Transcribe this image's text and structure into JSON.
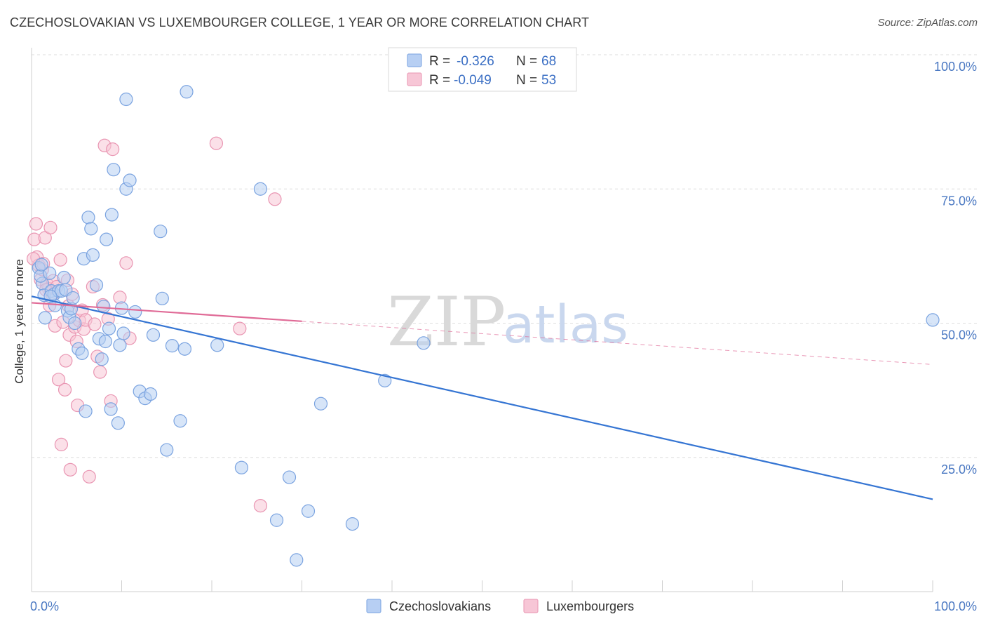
{
  "title": "CZECHOSLOVAKIAN VS LUXEMBOURGER COLLEGE, 1 YEAR OR MORE CORRELATION CHART",
  "source": "Source: ZipAtlas.com",
  "watermark": {
    "zip": "ZIP",
    "atlas": "atlas"
  },
  "colors": {
    "blue_fill": "#b7cff3",
    "blue_stroke": "#7aa3e0",
    "blue_line": "#3575d3",
    "pink_fill": "#f7c6d6",
    "pink_stroke": "#e995b2",
    "pink_line": "#e06b97",
    "grid": "#dddddd",
    "tick_text": "#4a78c2"
  },
  "legend": {
    "rows": [
      {
        "r_label": "R =",
        "r_value": "-0.326",
        "n_label": "N =",
        "n_value": "68"
      },
      {
        "r_label": "R =",
        "r_value": "-0.049",
        "n_label": "N =",
        "n_value": "53"
      }
    ]
  },
  "chart_data": {
    "type": "scatter",
    "title": "CZECHOSLOVAKIAN VS LUXEMBOURGER COLLEGE, 1 YEAR OR MORE CORRELATION CHART",
    "xlabel": "",
    "ylabel": "College, 1 year or more",
    "xlim": [
      0,
      100
    ],
    "ylim": [
      0,
      100
    ],
    "x_tick_labels": [
      "0.0%",
      "100.0%"
    ],
    "y_tick_values": [
      100,
      75,
      50,
      25
    ],
    "y_tick_labels": [
      "100.0%",
      "75.0%",
      "50.0%",
      "25.0%"
    ],
    "series": [
      {
        "name": "Czechoslovakians",
        "color_key": "blue",
        "R": -0.326,
        "N": 68,
        "trend": {
          "x0": 0,
          "y0": 55.0,
          "x1": 100,
          "y1": 17.2,
          "solid_to": 100
        },
        "points": [
          [
            0.8,
            60.3
          ],
          [
            1.2,
            57.4
          ],
          [
            1.0,
            58.8
          ],
          [
            1.4,
            55.2
          ],
          [
            1.5,
            51.0
          ],
          [
            2.0,
            59.3
          ],
          [
            2.2,
            56.0
          ],
          [
            2.5,
            55.4
          ],
          [
            2.6,
            53.3
          ],
          [
            3.0,
            56.0
          ],
          [
            3.3,
            56.0
          ],
          [
            3.6,
            58.5
          ],
          [
            3.8,
            56.2
          ],
          [
            4.0,
            52.3
          ],
          [
            4.2,
            51.1
          ],
          [
            4.4,
            52.7
          ],
          [
            4.6,
            54.7
          ],
          [
            4.8,
            50.0
          ],
          [
            5.2,
            45.2
          ],
          [
            5.6,
            44.4
          ],
          [
            5.8,
            62.0
          ],
          [
            6.0,
            33.6
          ],
          [
            6.3,
            69.7
          ],
          [
            6.6,
            67.6
          ],
          [
            6.8,
            62.7
          ],
          [
            7.2,
            57.1
          ],
          [
            7.5,
            47.1
          ],
          [
            7.8,
            43.3
          ],
          [
            8.0,
            53.1
          ],
          [
            8.3,
            65.6
          ],
          [
            8.6,
            49.0
          ],
          [
            8.8,
            34.0
          ],
          [
            8.9,
            70.2
          ],
          [
            9.1,
            78.6
          ],
          [
            9.6,
            31.4
          ],
          [
            9.8,
            45.9
          ],
          [
            10.0,
            52.8
          ],
          [
            10.2,
            48.1
          ],
          [
            10.5,
            91.7
          ],
          [
            10.5,
            75.0
          ],
          [
            10.9,
            76.6
          ],
          [
            11.5,
            52.1
          ],
          [
            12.0,
            37.3
          ],
          [
            12.6,
            36.0
          ],
          [
            13.2,
            36.8
          ],
          [
            13.5,
            47.8
          ],
          [
            14.3,
            67.1
          ],
          [
            14.5,
            54.6
          ],
          [
            15.0,
            26.4
          ],
          [
            15.6,
            45.8
          ],
          [
            16.5,
            31.8
          ],
          [
            17.0,
            45.2
          ],
          [
            17.2,
            93.1
          ],
          [
            20.6,
            45.9
          ],
          [
            23.3,
            23.1
          ],
          [
            25.4,
            75.0
          ],
          [
            27.2,
            13.3
          ],
          [
            28.6,
            21.3
          ],
          [
            29.4,
            5.9
          ],
          [
            30.7,
            15.0
          ],
          [
            32.1,
            35.0
          ],
          [
            35.6,
            12.6
          ],
          [
            39.2,
            39.3
          ],
          [
            43.5,
            46.3
          ],
          [
            100.0,
            50.6
          ],
          [
            1.1,
            60.9
          ],
          [
            2.1,
            55.0
          ],
          [
            8.2,
            46.6
          ]
        ]
      },
      {
        "name": "Luxembourgers",
        "color_key": "pink",
        "R": -0.049,
        "N": 53,
        "trend": {
          "x0": 0,
          "y0": 53.8,
          "x1": 100,
          "y1": 42.3,
          "solid_to": 30
        },
        "points": [
          [
            0.3,
            65.6
          ],
          [
            0.5,
            68.5
          ],
          [
            0.6,
            62.3
          ],
          [
            0.8,
            60.8
          ],
          [
            1.0,
            58.1
          ],
          [
            1.2,
            60.0
          ],
          [
            1.3,
            61.1
          ],
          [
            1.5,
            65.9
          ],
          [
            1.7,
            57.3
          ],
          [
            1.9,
            56.4
          ],
          [
            2.0,
            53.3
          ],
          [
            2.1,
            67.8
          ],
          [
            2.3,
            55.3
          ],
          [
            2.4,
            57.9
          ],
          [
            2.6,
            49.5
          ],
          [
            2.8,
            56.8
          ],
          [
            3.0,
            39.5
          ],
          [
            3.2,
            61.8
          ],
          [
            3.3,
            27.4
          ],
          [
            3.5,
            50.2
          ],
          [
            3.7,
            37.6
          ],
          [
            3.8,
            43.0
          ],
          [
            4.0,
            58.0
          ],
          [
            4.1,
            53.2
          ],
          [
            4.2,
            47.8
          ],
          [
            4.3,
            22.7
          ],
          [
            4.5,
            55.4
          ],
          [
            4.8,
            49.3
          ],
          [
            5.0,
            46.6
          ],
          [
            5.1,
            34.7
          ],
          [
            5.3,
            50.5
          ],
          [
            5.6,
            52.4
          ],
          [
            5.8,
            48.9
          ],
          [
            6.0,
            50.6
          ],
          [
            6.4,
            21.4
          ],
          [
            6.8,
            56.8
          ],
          [
            7.0,
            49.8
          ],
          [
            7.3,
            43.8
          ],
          [
            7.6,
            40.9
          ],
          [
            7.9,
            53.4
          ],
          [
            8.1,
            83.1
          ],
          [
            8.5,
            50.8
          ],
          [
            8.8,
            35.5
          ],
          [
            9.0,
            82.4
          ],
          [
            9.8,
            54.8
          ],
          [
            10.5,
            61.2
          ],
          [
            10.9,
            47.2
          ],
          [
            20.5,
            83.5
          ],
          [
            23.1,
            49.0
          ],
          [
            25.4,
            16.0
          ],
          [
            27.0,
            73.1
          ],
          [
            0.2,
            62.0
          ],
          [
            1.6,
            56.2
          ]
        ]
      }
    ],
    "legend": [
      "Czechoslovakians",
      "Luxembourgers"
    ]
  }
}
